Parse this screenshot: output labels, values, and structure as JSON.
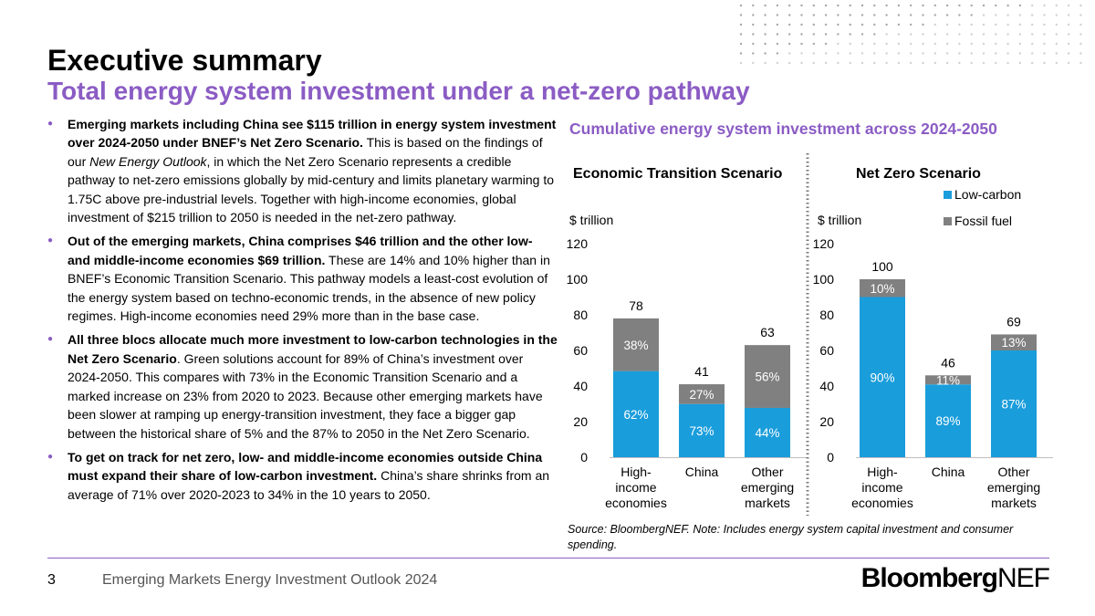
{
  "header": {
    "title": "Executive summary",
    "subtitle": "Total energy system investment under a net-zero pathway"
  },
  "bullets": [
    {
      "bold": "Emerging markets including China see $115 trillion in energy system investment over 2024-2050 under BNEF’s Net Zero Scenario.",
      "text_before": " This is based on the findings of our ",
      "italic": "New Energy Outlook",
      "text_after": ", in which the Net Zero Scenario represents a credible pathway to net-zero emissions globally by mid-century and limits planetary warming to 1.75C above pre-industrial levels. Together with high-income economies, global investment of $215 trillion to 2050 is needed in the net-zero pathway."
    },
    {
      "bold": "Out of the emerging markets, China comprises $46 trillion and the other low- and middle-income economies $69 trillion.",
      "text": " These are 14% and 10% higher than in BNEF’s Economic Transition Scenario. This pathway models a least-cost evolution of the energy system based on techno-economic trends, in the absence of new policy regimes. High-income economies need 29% more than in the base case."
    },
    {
      "bold": "All three blocs allocate much more investment to low-carbon technologies in the Net Zero Scenario",
      "text": ". Green solutions account for 89% of China’s investment over 2024-2050. This compares with 73% in the Economic Transition Scenario and a marked increase on 23% from 2020 to 2023. Because other emerging markets have been slower at ramping up energy-transition investment, they face a bigger gap between the historical share of 5% and the 87% to 2050 in the Net Zero Scenario."
    },
    {
      "bold": "To get on track for net zero, low- and middle-income economies outside China must expand their share of low-carbon investment.",
      "text": " China’s share shrinks from an average of 71% over 2020-2023 to 34% in the 10 years to 2050."
    }
  ],
  "chart_section_title": "Cumulative energy system investment across 2024-2050",
  "colors": {
    "accent": "#8b5cc4",
    "low_carbon": "#1a9ddb",
    "fossil_fuel": "#808080"
  },
  "chart_data": [
    {
      "type": "bar",
      "stacked": true,
      "title": "Economic Transition Scenario",
      "ylabel": "$ trillion",
      "ylim": [
        0,
        120
      ],
      "yticks": [
        0,
        20,
        40,
        60,
        80,
        100,
        120
      ],
      "categories": [
        [
          "High-",
          "income",
          "economies"
        ],
        [
          "China"
        ],
        [
          "Other",
          "emerging",
          "markets"
        ]
      ],
      "totals": [
        78,
        41,
        63
      ],
      "series": [
        {
          "name": "Low-carbon",
          "values": [
            48.4,
            29.9,
            27.7
          ],
          "labels": [
            "62%",
            "73%",
            "44%"
          ]
        },
        {
          "name": "Fossil fuel",
          "values": [
            29.6,
            11.1,
            35.3
          ],
          "labels": [
            "38%",
            "27%",
            "56%"
          ]
        }
      ],
      "legend": false
    },
    {
      "type": "bar",
      "stacked": true,
      "title": "Net Zero Scenario",
      "ylabel": "$ trillion",
      "ylim": [
        0,
        120
      ],
      "yticks": [
        0,
        20,
        40,
        60,
        80,
        100,
        120
      ],
      "categories": [
        [
          "High-",
          "income",
          "economies"
        ],
        [
          "China"
        ],
        [
          "Other",
          "emerging",
          "markets"
        ]
      ],
      "totals": [
        100,
        46,
        69
      ],
      "series": [
        {
          "name": "Low-carbon",
          "values": [
            90,
            40.9,
            60
          ],
          "labels": [
            "90%",
            "89%",
            "87%"
          ]
        },
        {
          "name": "Fossil fuel",
          "values": [
            10,
            5.1,
            9
          ],
          "labels": [
            "10%",
            "11%",
            "13%"
          ]
        }
      ],
      "legend": true,
      "legend_position": "top-right"
    }
  ],
  "source_note": "Source: BloombergNEF. Note: Includes energy system capital investment and consumer spending.",
  "footer": {
    "page_number": "3",
    "report_title": "Emerging Markets Energy Investment Outlook 2024",
    "logo_part1": "Bloomberg",
    "logo_part2": "NEF"
  }
}
